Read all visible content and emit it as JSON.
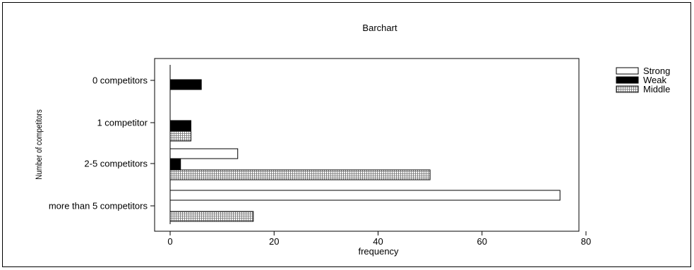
{
  "chart_data": {
    "type": "bar",
    "orientation": "horizontal",
    "title": "Barchart",
    "xlabel": "frequency",
    "ylabel": "Number of competitors",
    "categories": [
      "0 competitors",
      "1 competitor",
      "2-5 competitors",
      "more than 5 competitors"
    ],
    "series": [
      {
        "name": "Strong",
        "values": [
          0,
          0,
          13,
          75
        ],
        "color": "#ffffff",
        "pattern": "none"
      },
      {
        "name": "Weak",
        "values": [
          6,
          4,
          2,
          0
        ],
        "color": "#000000",
        "pattern": "solid"
      },
      {
        "name": "Middle",
        "values": [
          0,
          4,
          50,
          16
        ],
        "color": "#d9d9d9",
        "pattern": "crosshatch"
      }
    ],
    "xlim": [
      0,
      80
    ],
    "xticks": [
      "0",
      "20",
      "40",
      "60",
      "80"
    ],
    "grid": false,
    "legend_position": "right"
  }
}
